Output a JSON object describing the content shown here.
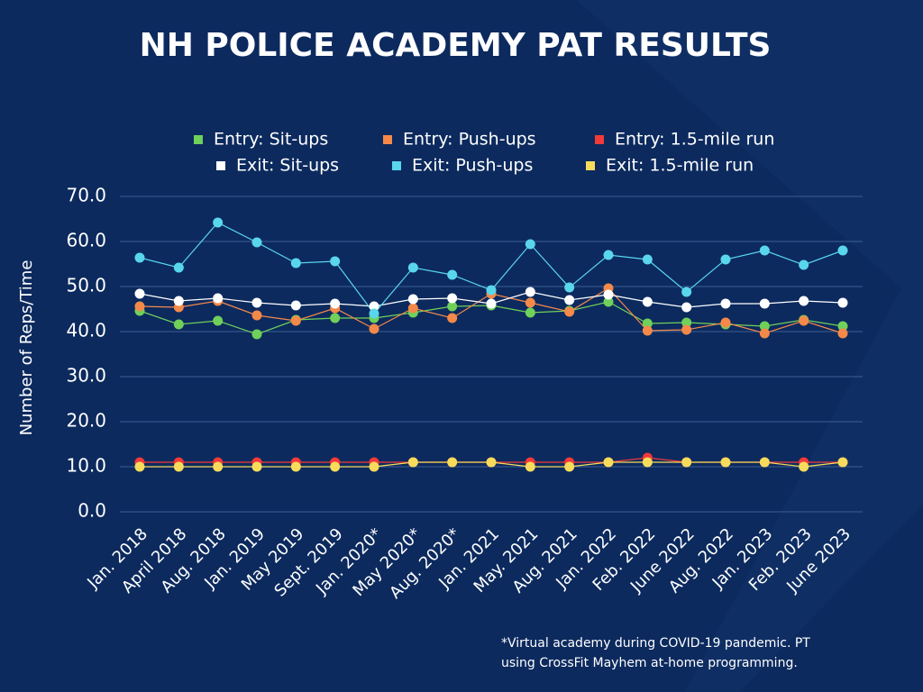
{
  "chart_data": {
    "type": "line",
    "title": "NH POLICE ACADEMY PAT RESULTS",
    "y_label": "Number of Reps/Time",
    "annotation": [
      "*Virtual academy during COVID-19 pandemic. PT",
      "using CrossFit Mayhem at-home programming."
    ],
    "categories": [
      "Jan. 2018",
      "April 2018",
      "Aug. 2018",
      "Jan. 2019",
      "May 2019",
      "Sept. 2019",
      "Jan. 2020*",
      "May 2020*",
      "Aug. 2020*",
      "Jan. 2021",
      "May. 2021",
      "Aug. 2021",
      "Jan. 2022",
      "Feb. 2022",
      "June 2022",
      "Aug. 2022",
      "Jan. 2023",
      "Feb. 2023",
      "June 2023"
    ],
    "series": [
      {
        "name": "Entry: Sit-ups",
        "color": "#6fd05a",
        "values": [
          44.6,
          41.6,
          42.4,
          39.4,
          42.6,
          43,
          43,
          44.2,
          45.6,
          45.8,
          44.2,
          44.6,
          46.6,
          41.8,
          42,
          41.6,
          41.2,
          42.6,
          41.2
        ]
      },
      {
        "name": "Entry: Push-ups",
        "color": "#f5894a",
        "values": [
          45.6,
          45.4,
          46.8,
          43.6,
          42.4,
          45.2,
          40.6,
          45.2,
          43,
          48.4,
          46.4,
          44.4,
          49.6,
          40.2,
          40.4,
          42,
          39.6,
          42.4,
          39.6
        ]
      },
      {
        "name": "Entry: 1.5-mile run",
        "color": "#f23a3a",
        "values": [
          11,
          11,
          11,
          11,
          11,
          11,
          11,
          11,
          11,
          11,
          11,
          11,
          11,
          12,
          11,
          11,
          11,
          11,
          11
        ]
      },
      {
        "name": "Exit: Sit-ups",
        "color": "#ffffff",
        "values": [
          48.4,
          46.8,
          47.4,
          46.4,
          45.8,
          46.2,
          45.6,
          47.2,
          47.4,
          46.2,
          48.8,
          47,
          48.2,
          46.6,
          45.4,
          46.2,
          46.2,
          46.8,
          46.4
        ]
      },
      {
        "name": "Exit: Push-ups",
        "color": "#5ad6ec",
        "values": [
          56.4,
          54.2,
          64.2,
          59.8,
          55.2,
          55.6,
          44,
          54.2,
          52.6,
          49.2,
          59.4,
          49.8,
          57,
          56,
          48.8,
          56,
          58,
          54.8,
          58
        ]
      },
      {
        "name": "Exit: 1.5-mile run",
        "color": "#f7dc5c",
        "values": [
          10,
          10,
          10,
          10,
          10,
          10,
          10,
          11,
          11,
          11,
          10,
          10,
          11,
          11,
          11,
          11,
          11,
          10,
          11
        ]
      }
    ],
    "ylim": [
      0,
      70
    ],
    "yticks": [
      {
        "value": 0,
        "label": "0.0"
      },
      {
        "value": 10,
        "label": "10.0"
      },
      {
        "value": 20,
        "label": "20.0"
      },
      {
        "value": 30,
        "label": "30.0"
      },
      {
        "value": 40,
        "label": "40.0"
      },
      {
        "value": 50,
        "label": "50.0"
      },
      {
        "value": 60,
        "label": "60.0"
      },
      {
        "value": 70,
        "label": "70.0"
      }
    ],
    "grid": true
  }
}
